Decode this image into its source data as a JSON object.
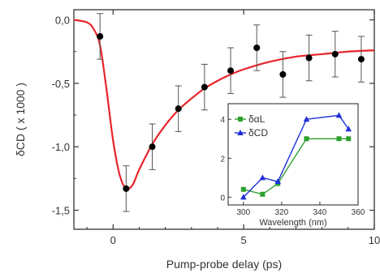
{
  "colors": {
    "fit": "#e8252a",
    "points": "#000000",
    "axis": "#333333",
    "inset_alpha": "#2ca02c",
    "inset_cd": "#1f2fd8"
  },
  "chart_data": [
    {
      "type": "scatter",
      "xlabel": "Pump-probe delay (ps)",
      "ylabel": "δCD ( x 1000 )",
      "xlim": [
        -1.5,
        10
      ],
      "ylim": [
        -1.65,
        0.08
      ],
      "xticks": [
        0,
        5,
        10
      ],
      "xtick_labels": [
        "0",
        "5",
        "10"
      ],
      "yticks": [
        0,
        -0.5,
        -1,
        -1.5
      ],
      "ytick_labels": [
        "0,0",
        "-0,5",
        "-1,0",
        "-1,5"
      ],
      "series": [
        {
          "marker": "circle",
          "x": [
            -0.5,
            0.5,
            1.5,
            2.5,
            3.5,
            4.5,
            5.5,
            6.5,
            7.5,
            8.5,
            9.5
          ],
          "y": [
            -0.13,
            -1.33,
            -1.0,
            -0.7,
            -0.53,
            -0.4,
            -0.22,
            -0.43,
            -0.3,
            -0.27,
            -0.31
          ],
          "yerr": [
            0.18,
            0.18,
            0.18,
            0.18,
            0.18,
            0.18,
            0.18,
            0.18,
            0.18,
            0.18,
            0.18
          ]
        },
        {
          "kind": "fit-line",
          "x": [
            -1.5,
            -1.0,
            -0.75,
            -0.5,
            -0.25,
            0.0,
            0.25,
            0.5,
            0.75,
            1.0,
            1.5,
            2.0,
            2.5,
            3.0,
            3.5,
            4.0,
            4.5,
            5.0,
            6.0,
            7.0,
            8.0,
            9.0,
            10.0
          ],
          "y": [
            0.0,
            -0.02,
            -0.07,
            -0.2,
            -0.55,
            -0.95,
            -1.22,
            -1.33,
            -1.3,
            -1.18,
            -0.98,
            -0.83,
            -0.71,
            -0.62,
            -0.54,
            -0.48,
            -0.43,
            -0.39,
            -0.33,
            -0.29,
            -0.27,
            -0.25,
            -0.24
          ]
        }
      ]
    },
    {
      "type": "line",
      "inset": true,
      "xlabel": "Wavelength (nm)",
      "xlim": [
        292,
        360
      ],
      "ylim": [
        -0.4,
        4.8
      ],
      "xticks": [
        300,
        320,
        340,
        360
      ],
      "yticks": [
        0,
        2,
        4
      ],
      "legend_position": "top-left",
      "series": [
        {
          "name": "δαL",
          "marker": "square",
          "x": [
            300,
            310,
            318,
            333,
            350,
            355
          ],
          "y": [
            0.4,
            0.15,
            0.7,
            3.0,
            3.0,
            3.0
          ]
        },
        {
          "name": "δCD",
          "marker": "triangle",
          "x": [
            300,
            310,
            318,
            333,
            350,
            355
          ],
          "y": [
            0.0,
            1.0,
            0.8,
            4.0,
            4.2,
            3.5
          ]
        }
      ]
    }
  ]
}
